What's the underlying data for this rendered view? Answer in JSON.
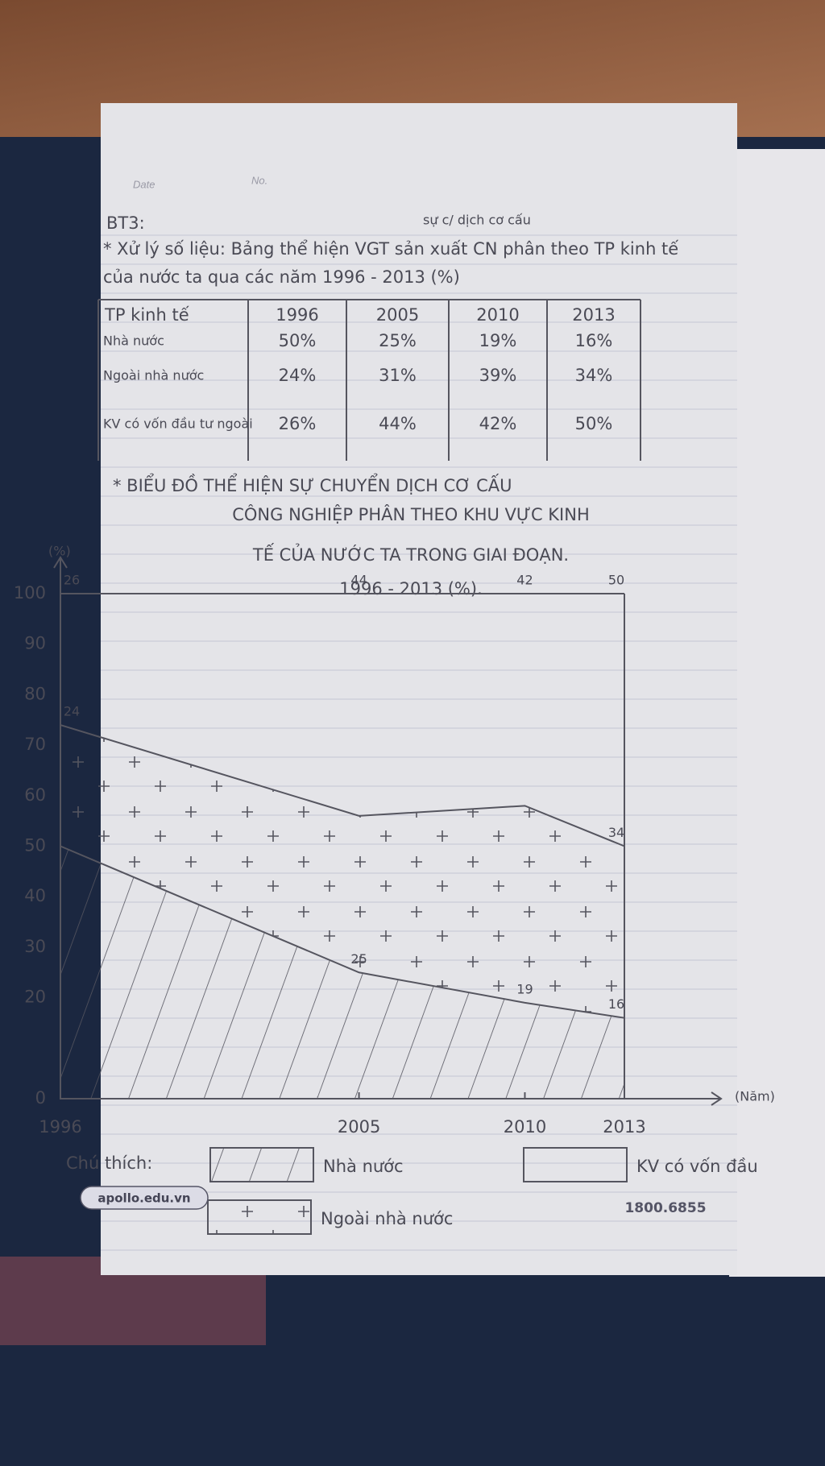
{
  "header": {
    "date": "Date",
    "no": "No.",
    "exercise": "BT3:",
    "note": "sự c/ dịch cơ cấu"
  },
  "intro": [
    "* Xử lý số liệu: Bảng thể hiện VGT sản xuất CN phân theo TP kinh tế",
    "của nước ta qua các năm 1996 - 2013 (%)"
  ],
  "table": {
    "header": [
      "TP kinh tế",
      "1996",
      "2005",
      "2010",
      "2013"
    ],
    "rows": [
      [
        "Nhà nước",
        "50%",
        "25%",
        "19%",
        "16%"
      ],
      [
        "Ngoài nhà nước",
        "24%",
        "31%",
        "39%",
        "34%"
      ],
      [
        "KV có vốn đầu tư ngoài",
        "26%",
        "44%",
        "42%",
        "50%"
      ]
    ]
  },
  "chart_data": {
    "type": "area",
    "title_lines": [
      "* BIỂU ĐỒ THỂ HIỆN SỰ CHUYỂN DỊCH CƠ CẤU",
      "CÔNG NGHIỆP PHÂN THEO KHU VỰC KINH",
      "TẾ CỦA NƯỚC TA TRONG GIAI ĐOẠN.",
      "1996 - 2013 (%)."
    ],
    "y_label": "(%)",
    "x_label": "(Năm)",
    "x": [
      1996,
      2005,
      2010,
      2013
    ],
    "xlim": [
      1996,
      2013
    ],
    "ylim": [
      0,
      100
    ],
    "yticks": [
      0,
      20,
      30,
      40,
      50,
      60,
      70,
      80,
      90,
      100
    ],
    "stacked": true,
    "series": [
      {
        "name": "Nhà nước",
        "color": "#55555f",
        "pattern": "hatch",
        "values": [
          50,
          25,
          19,
          16
        ],
        "value_labels": [
          null,
          "25",
          "19",
          "16"
        ]
      },
      {
        "name": "Ngoài nhà nước",
        "color": "#55555f",
        "pattern": "plus",
        "values": [
          24,
          31,
          39,
          34
        ],
        "value_labels": [
          "24",
          null,
          null,
          "34"
        ]
      },
      {
        "name": "KV có vốn đầu",
        "color": "#55555f",
        "pattern": "none",
        "values": [
          26,
          44,
          42,
          50
        ],
        "value_labels": [
          "26",
          "44",
          "42",
          "50"
        ]
      }
    ],
    "legend_title": "Chú thích:"
  },
  "footer": {
    "site": "apollo.edu.vn",
    "phone": "1800.6855"
  }
}
